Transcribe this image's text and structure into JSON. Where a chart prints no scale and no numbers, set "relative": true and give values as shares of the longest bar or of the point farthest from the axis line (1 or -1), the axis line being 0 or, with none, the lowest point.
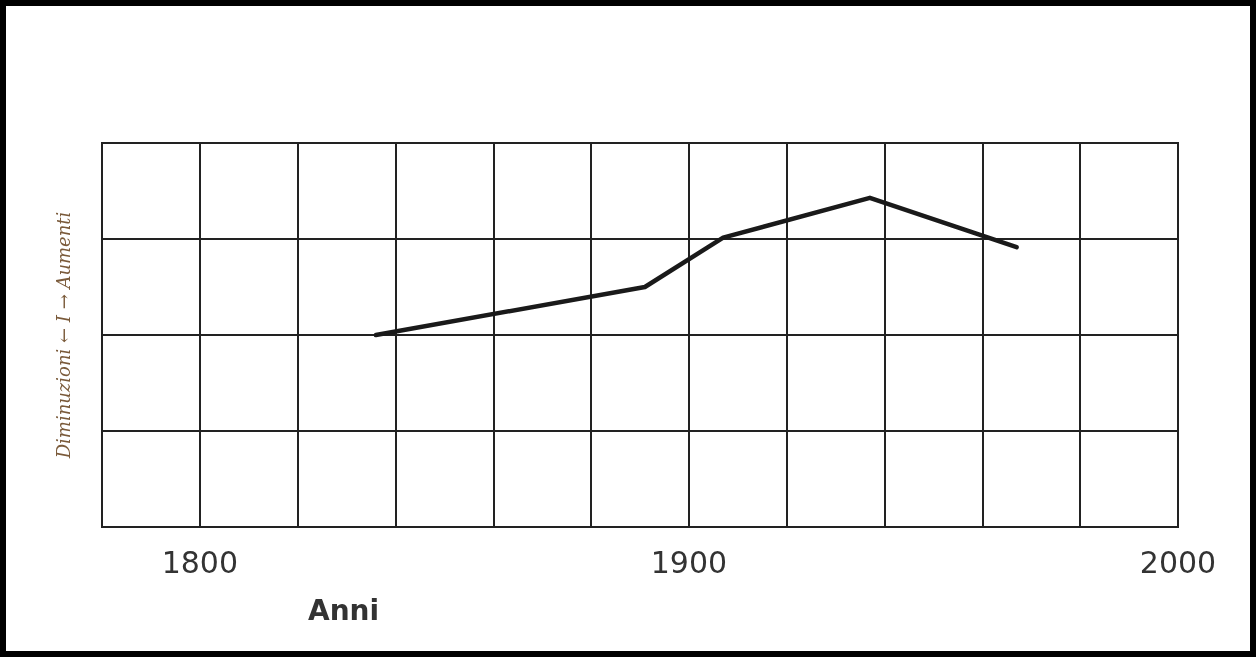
{
  "chart_data": {
    "type": "line",
    "xlabel": "Anni",
    "ylabel": "Diminuzioni ← I → Aumenti",
    "relative": true,
    "series": [
      {
        "color": "#1a1a1a",
        "x": [
          1836,
          1891,
          1907,
          1937,
          1967
        ],
        "values": [
          0,
          0.35,
          0.71,
          1,
          0.64
        ]
      }
    ],
    "xlim": [
      1780,
      2000
    ],
    "xticks": [
      1800,
      {
        "value": 1820,
        "label": null
      },
      {
        "value": 1840,
        "label": null
      },
      {
        "value": 1860,
        "label": null
      },
      {
        "value": 1880,
        "label": null
      },
      1900,
      {
        "value": 1920,
        "label": null
      },
      {
        "value": 1940,
        "label": null
      },
      {
        "value": 1960,
        "label": null
      },
      {
        "value": 1980,
        "label": null
      },
      2000
    ],
    "grid": true,
    "marker": "none",
    "line_style": "solid"
  }
}
